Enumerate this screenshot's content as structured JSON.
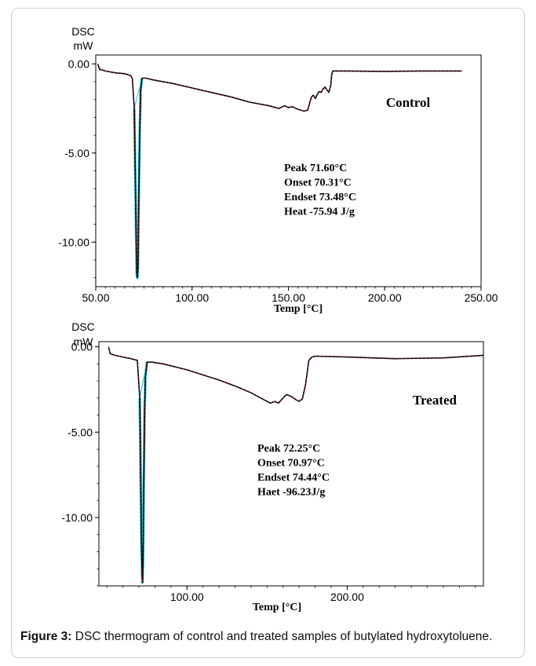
{
  "chart_data": [
    {
      "type": "line",
      "title": "",
      "ylabel": "DSC\nmW",
      "ylabel_lines": [
        "DSC",
        "mW"
      ],
      "xlabel": "Temp [°C]",
      "xlim": [
        50,
        250
      ],
      "ylim": [
        -12.5,
        0.5
      ],
      "x_ticks": [
        50,
        100,
        150,
        200,
        250
      ],
      "x_tick_labels": [
        "50.00",
        "100.00",
        "150.00",
        "200.00",
        "250.00"
      ],
      "y_ticks": [
        0,
        -5,
        -10
      ],
      "y_tick_labels": [
        "0.00",
        "-5.00",
        "-10.00"
      ],
      "grid": false,
      "sample_label": "Control",
      "annotations": [
        "Peak   71.60°C",
        "Onset  70.31°C",
        "Endset 73.48°C",
        "Heat    -75.94 J/g"
      ],
      "series": [
        {
          "x": [
            51,
            52,
            55,
            60,
            65,
            68,
            69,
            70,
            70.5,
            71,
            71.3,
            71.6,
            71.9,
            72.3,
            72.8,
            73.3,
            74,
            76,
            80,
            90,
            100,
            110,
            120,
            130,
            140,
            145,
            148,
            150,
            152,
            155,
            158,
            160,
            161,
            162,
            163,
            164,
            165,
            166,
            167,
            168,
            169,
            170,
            171,
            172,
            172.5,
            173,
            175,
            180,
            200,
            220,
            240
          ],
          "y": [
            0.0,
            -0.3,
            -0.4,
            -0.5,
            -0.55,
            -0.65,
            -0.8,
            -2.5,
            -6.0,
            -10.0,
            -11.8,
            -12.0,
            -11.5,
            -8.0,
            -4.0,
            -1.5,
            -0.8,
            -0.8,
            -0.9,
            -1.1,
            -1.35,
            -1.6,
            -1.85,
            -2.15,
            -2.35,
            -2.5,
            -2.35,
            -2.45,
            -2.4,
            -2.55,
            -2.65,
            -2.6,
            -2.2,
            -1.85,
            -1.75,
            -1.95,
            -1.7,
            -1.55,
            -1.6,
            -1.4,
            -1.3,
            -1.45,
            -1.6,
            -1.2,
            -0.6,
            -0.4,
            -0.4,
            -0.4,
            -0.42,
            -0.4,
            -0.4
          ]
        }
      ]
    },
    {
      "type": "line",
      "title": "",
      "ylabel": "DSC\nmW",
      "ylabel_lines": [
        "DSC",
        "mW"
      ],
      "xlabel": "Temp [°C]",
      "xlim": [
        45,
        285
      ],
      "ylim": [
        -14.0,
        0.3
      ],
      "x_ticks": [
        100,
        200
      ],
      "x_tick_labels": [
        "100.00",
        "200.00"
      ],
      "y_ticks": [
        0,
        -5,
        -10
      ],
      "y_tick_labels": [
        "0.00",
        "-5.00",
        "-10.00"
      ],
      "grid": false,
      "sample_label": "Treated",
      "annotations": [
        "Peak   72.25°C",
        "Onset  70.97°C",
        "Endset 74.44°C",
        "Haet    -96.23J/g"
      ],
      "series": [
        {
          "x": [
            51,
            52,
            55,
            60,
            65,
            69,
            70.5,
            71,
            71.5,
            72,
            72.25,
            72.6,
            73,
            73.5,
            74,
            75,
            78,
            85,
            100,
            110,
            120,
            130,
            140,
            148,
            152,
            155,
            157,
            160,
            162,
            165,
            168,
            170,
            172,
            174,
            176,
            178,
            180,
            200,
            230,
            260,
            285
          ],
          "y": [
            0.0,
            -0.4,
            -0.5,
            -0.6,
            -0.7,
            -0.8,
            -3.0,
            -7.0,
            -11.0,
            -13.4,
            -13.8,
            -12.5,
            -8.0,
            -4.0,
            -1.8,
            -0.9,
            -0.9,
            -1.0,
            -1.35,
            -1.65,
            -1.95,
            -2.3,
            -2.7,
            -3.1,
            -3.3,
            -3.2,
            -3.3,
            -3.0,
            -2.8,
            -2.9,
            -3.1,
            -3.2,
            -3.05,
            -2.2,
            -0.8,
            -0.6,
            -0.55,
            -0.6,
            -0.7,
            -0.65,
            -0.5
          ]
        }
      ]
    }
  ],
  "figure": {
    "caption_label": "Figure 3:",
    "caption_text": " DSC thermogram of control and treated samples of butylated hydroxytoluene."
  }
}
